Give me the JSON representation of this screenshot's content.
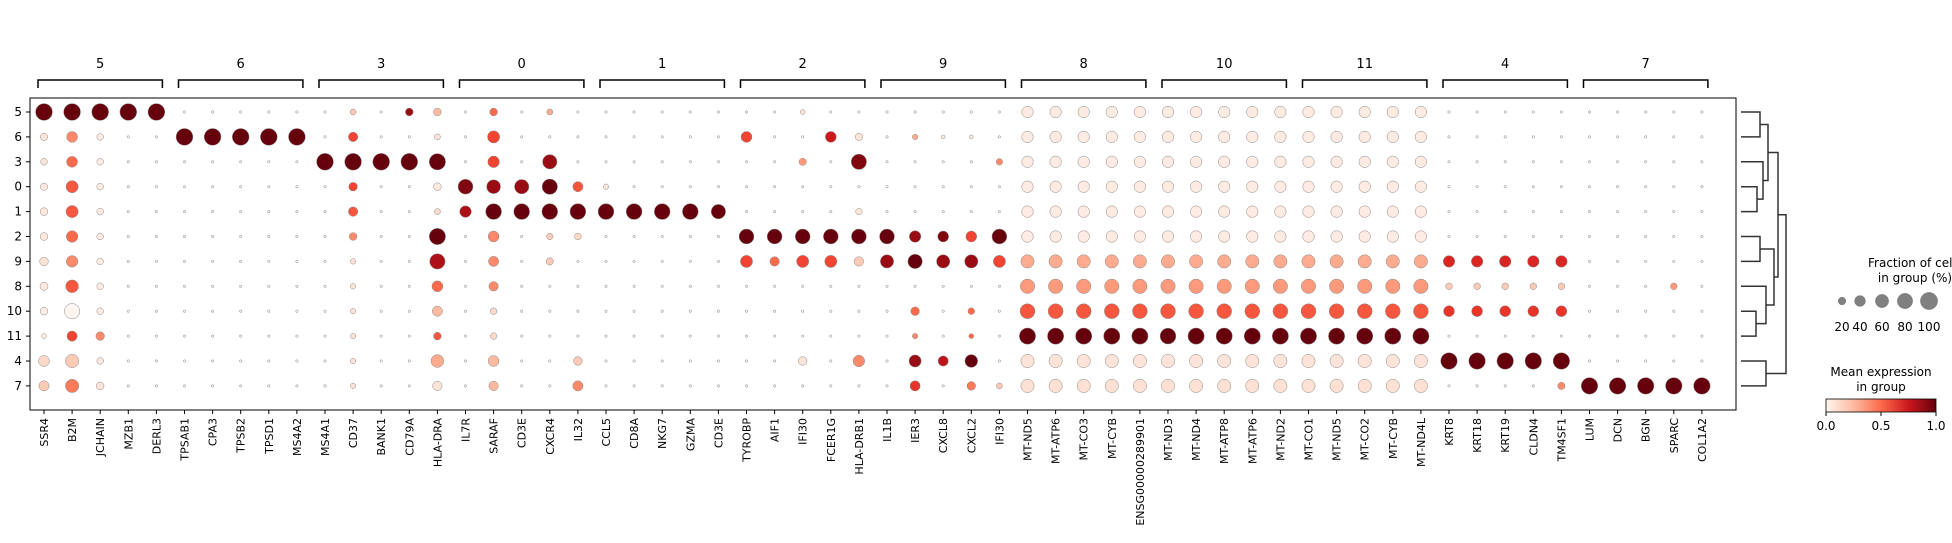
{
  "chart_data": {
    "type": "dotplot",
    "group_labels": [
      "5",
      "6",
      "3",
      "0",
      "1",
      "2",
      "9",
      "8",
      "10",
      "11",
      "4",
      "7"
    ],
    "row_labels": [
      "5",
      "6",
      "3",
      "0",
      "1",
      "2",
      "9",
      "8",
      "10",
      "11",
      "4",
      "7"
    ],
    "genes": [
      "SSR4",
      "B2M",
      "JCHAIN",
      "MZB1",
      "DERL3",
      "TPSAB1",
      "CPA3",
      "TPSB2",
      "TPSD1",
      "MS4A2",
      "MS4A1",
      "CD37",
      "BANK1",
      "CD79A",
      "HLA-DRA",
      "IL7R",
      "SARAF",
      "CD3E",
      "CXCR4",
      "IL32",
      "CCL5",
      "CD8A",
      "NKG7",
      "GZMA",
      "CD3E",
      "TYROBP",
      "AIF1",
      "IFI30",
      "FCER1G",
      "HLA-DRB1",
      "IL1B",
      "IER3",
      "CXCL8",
      "CXCL2",
      "IFI30",
      "MT-ND5",
      "MT-ATP6",
      "MT-CO3",
      "MT-CYB",
      "ENSG00000289901",
      "MT-ND3",
      "MT-ND4",
      "MT-ATP8",
      "MT-ATP6",
      "MT-ND2",
      "MT-CO1",
      "MT-ND5",
      "MT-CO2",
      "MT-CYB",
      "MT-ND4L",
      "KRT8",
      "KRT18",
      "KRT19",
      "CLDN4",
      "TM4SF1",
      "LUM",
      "DCN",
      "BGN",
      "SPARC",
      "COL1A2"
    ],
    "size_legend": {
      "title_lines": [
        "Fraction of cells",
        "in group (%)"
      ],
      "values": [
        20,
        40,
        60,
        80,
        100
      ],
      "labels": [
        "20",
        "40",
        "60",
        "80",
        "100"
      ]
    },
    "color_legend": {
      "title_lines": [
        "Mean expression",
        "in group"
      ],
      "range": [
        0.0,
        1.0
      ],
      "ticks": [
        "0.0",
        "0.5",
        "1.0"
      ]
    },
    "colors": {
      "low": "#fff5f0",
      "mid": "#fb6a4a",
      "high": "#67000d",
      "dot_edge": "#888888",
      "axis": "#000000"
    }
  }
}
